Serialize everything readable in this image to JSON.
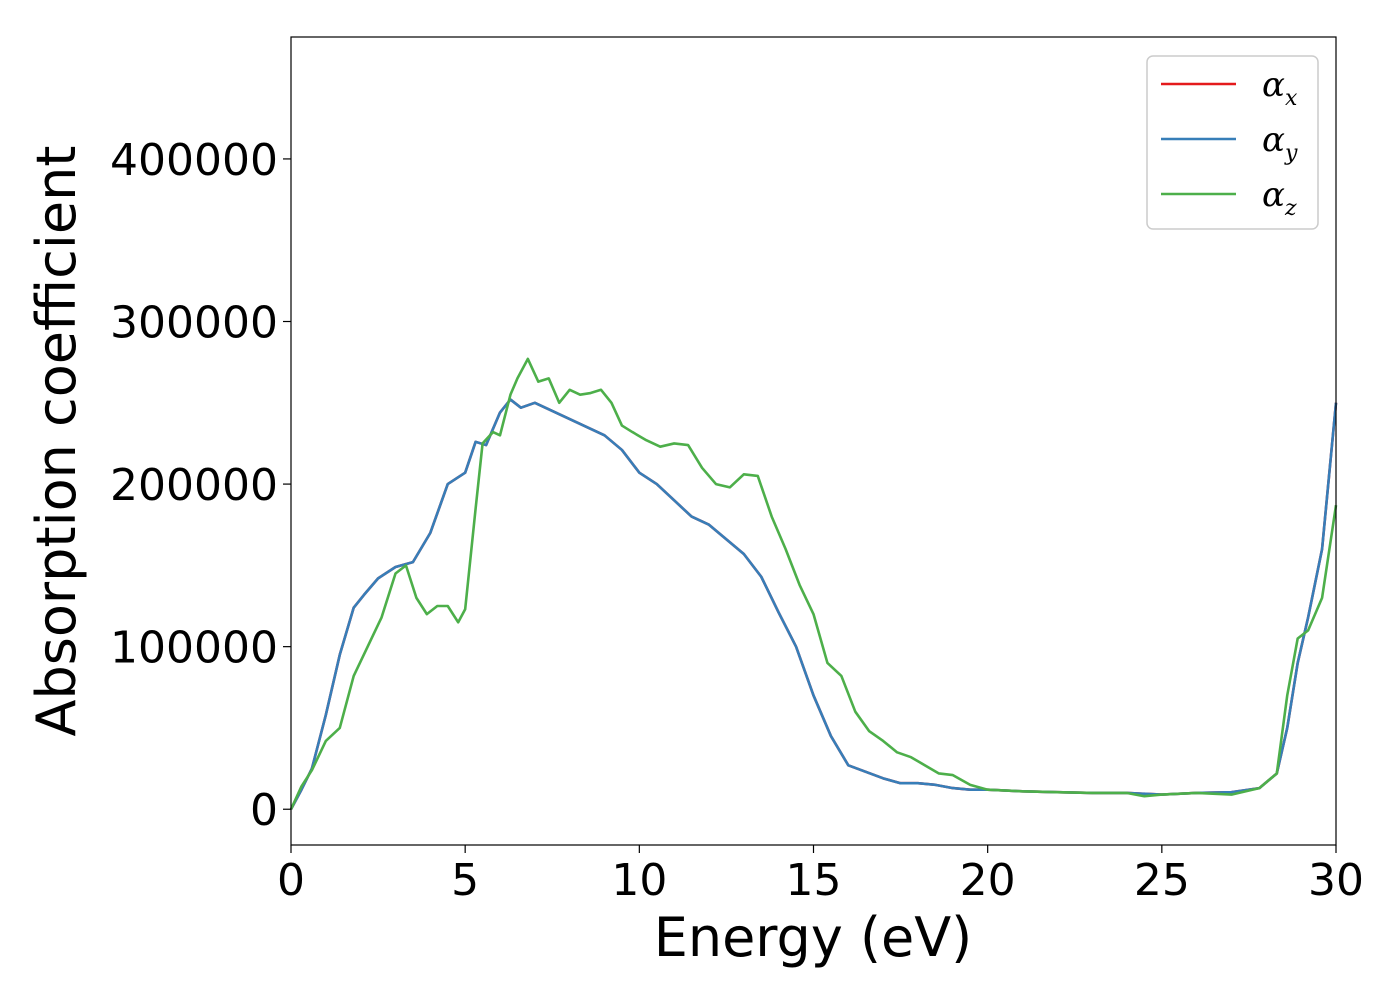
{
  "chart_data": {
    "type": "line",
    "title": "",
    "xlabel": "Energy (eV)",
    "ylabel": "Absorption coefficient",
    "xlim": [
      0,
      30
    ],
    "ylim": [
      -22000,
      475000
    ],
    "x_ticks": [
      0,
      5,
      10,
      15,
      20,
      25,
      30
    ],
    "x_tick_labels": [
      "0",
      "5",
      "10",
      "15",
      "20",
      "25",
      "30"
    ],
    "y_ticks": [
      0,
      100000,
      200000,
      300000,
      400000
    ],
    "y_tick_labels": [
      "0",
      "100000",
      "200000",
      "300000",
      "400000"
    ],
    "grid": false,
    "legend_position": "top-right",
    "series": [
      {
        "name": "α_x",
        "legend_symbol": "α",
        "legend_subscript": "x",
        "color": "#e41a1c",
        "x": [
          0,
          0.3,
          0.6,
          1,
          1.4,
          1.8,
          2.1,
          2.5,
          3,
          3.5,
          4,
          4.5,
          5,
          5.3,
          5.6,
          6,
          6.3,
          6.6,
          7,
          7.5,
          8,
          8.5,
          9,
          9.5,
          10,
          10.5,
          11,
          11.5,
          12,
          12.5,
          13,
          13.5,
          14,
          14.5,
          15,
          15.5,
          16,
          16.5,
          17,
          17.5,
          18,
          18.5,
          19,
          19.5,
          20,
          21,
          22,
          23,
          24,
          25,
          26,
          27,
          27.8,
          28.3,
          28.6,
          28.9,
          29.2,
          29.6,
          30
        ],
        "y": [
          0,
          12000,
          25000,
          58000,
          95000,
          124000,
          132000,
          142000,
          149000,
          152000,
          170000,
          200000,
          207000,
          226000,
          224000,
          244000,
          252000,
          247000,
          250000,
          245000,
          240000,
          235000,
          230000,
          221000,
          207000,
          200000,
          190000,
          180000,
          175000,
          166000,
          157000,
          143000,
          121000,
          100000,
          70000,
          45000,
          27000,
          23000,
          19000,
          16000,
          16000,
          15000,
          13000,
          12000,
          12000,
          11000,
          10500,
          10000,
          10000,
          9000,
          10000,
          10500,
          13000,
          22000,
          50000,
          90000,
          118000,
          160000,
          250000
        ]
      },
      {
        "name": "α_y",
        "legend_symbol": "α",
        "legend_subscript": "y",
        "color": "#377eb8",
        "x": [
          0,
          0.3,
          0.6,
          1,
          1.4,
          1.8,
          2.1,
          2.5,
          3,
          3.5,
          4,
          4.5,
          5,
          5.3,
          5.6,
          6,
          6.3,
          6.6,
          7,
          7.5,
          8,
          8.5,
          9,
          9.5,
          10,
          10.5,
          11,
          11.5,
          12,
          12.5,
          13,
          13.5,
          14,
          14.5,
          15,
          15.5,
          16,
          16.5,
          17,
          17.5,
          18,
          18.5,
          19,
          19.5,
          20,
          21,
          22,
          23,
          24,
          25,
          26,
          27,
          27.8,
          28.3,
          28.6,
          28.9,
          29.2,
          29.6,
          30
        ],
        "y": [
          0,
          12000,
          25000,
          58000,
          95000,
          124000,
          132000,
          142000,
          149000,
          152000,
          170000,
          200000,
          207000,
          226000,
          224000,
          244000,
          252000,
          247000,
          250000,
          245000,
          240000,
          235000,
          230000,
          221000,
          207000,
          200000,
          190000,
          180000,
          175000,
          166000,
          157000,
          143000,
          121000,
          100000,
          70000,
          45000,
          27000,
          23000,
          19000,
          16000,
          16000,
          15000,
          13000,
          12000,
          12000,
          11000,
          10500,
          10000,
          10000,
          9000,
          10000,
          10500,
          13000,
          22000,
          50000,
          90000,
          118000,
          160000,
          250000
        ]
      },
      {
        "name": "α_z",
        "legend_symbol": "α",
        "legend_subscript": "z",
        "color": "#4daf4a",
        "x": [
          0,
          0.3,
          0.6,
          1,
          1.4,
          1.8,
          2.2,
          2.6,
          3,
          3.3,
          3.6,
          3.9,
          4.2,
          4.5,
          4.8,
          5,
          5.3,
          5.5,
          5.8,
          6,
          6.3,
          6.5,
          6.8,
          7.1,
          7.4,
          7.7,
          8,
          8.3,
          8.6,
          8.9,
          9.2,
          9.5,
          9.8,
          10.2,
          10.6,
          11,
          11.4,
          11.8,
          12.2,
          12.6,
          13,
          13.4,
          13.8,
          14.2,
          14.6,
          15,
          15.4,
          15.8,
          16.2,
          16.6,
          17,
          17.4,
          17.8,
          18.2,
          18.6,
          19,
          19.5,
          20,
          21,
          22,
          23,
          24,
          24.5,
          25,
          26,
          27,
          27.8,
          28.3,
          28.6,
          28.9,
          29.2,
          29.6,
          30
        ],
        "y": [
          0,
          14000,
          24000,
          42000,
          50000,
          82000,
          100000,
          118000,
          145000,
          150000,
          130000,
          120000,
          125000,
          125000,
          115000,
          123000,
          185000,
          225000,
          232000,
          230000,
          255000,
          265000,
          277000,
          263000,
          265000,
          250000,
          258000,
          255000,
          256000,
          258000,
          250000,
          236000,
          232000,
          227000,
          223000,
          225000,
          224000,
          210000,
          200000,
          198000,
          206000,
          205000,
          180000,
          160000,
          138000,
          120000,
          90000,
          82000,
          60000,
          48000,
          42000,
          35000,
          32000,
          27000,
          22000,
          21000,
          15000,
          12000,
          11000,
          10500,
          10000,
          10000,
          8000,
          9000,
          10000,
          9000,
          13000,
          22000,
          70000,
          105000,
          110000,
          130000,
          187000
        ]
      }
    ]
  }
}
